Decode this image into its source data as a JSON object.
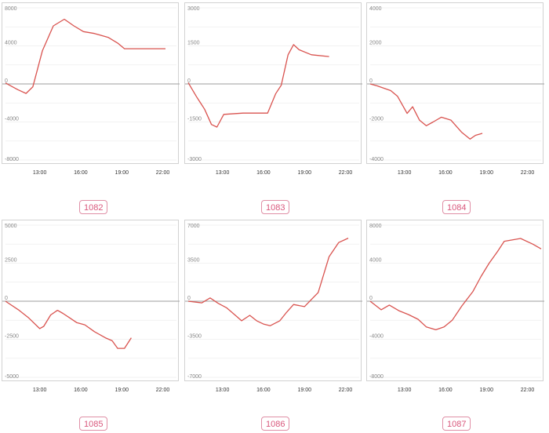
{
  "colors": {
    "line": "#d9534f",
    "grid": "#eeeeee",
    "zero_line": "#b0b0b0",
    "badge": "#d9577c"
  },
  "chart_data": [
    {
      "type": "line",
      "badge": "1082",
      "y_ticks": [
        8000,
        4000,
        0,
        -4000,
        -8000
      ],
      "y_tick_labels": [
        "8000",
        "4000",
        "0",
        "-4000",
        "-8000"
      ],
      "x_ticks": [
        "13:00",
        "16:00",
        "19:00",
        "22:00"
      ],
      "ylim": [
        -8000,
        8000
      ],
      "xlim": [
        10.5,
        23
      ],
      "series": [
        {
          "x": [
            10.5,
            11.4,
            12,
            12.5,
            13.2,
            14,
            14.8,
            15.5,
            16.2,
            17,
            18,
            18.7,
            19.2,
            20,
            21,
            22.2
          ],
          "y": [
            100,
            -600,
            -1000,
            -300,
            3500,
            6100,
            6800,
            6100,
            5500,
            5300,
            4900,
            4300,
            3700,
            3700,
            3700,
            3700
          ]
        }
      ]
    },
    {
      "type": "line",
      "badge": "1083",
      "y_ticks": [
        3000,
        1500,
        0,
        -1500,
        -3000
      ],
      "y_tick_labels": [
        "3000",
        "1500",
        "0",
        "-1500",
        "-3000"
      ],
      "x_ticks": [
        "13:00",
        "16:00",
        "19:00",
        "22:00"
      ],
      "ylim": [
        -3000,
        3000
      ],
      "xlim": [
        10.5,
        23
      ],
      "series": [
        {
          "x": [
            10.5,
            11.1,
            11.7,
            12.2,
            12.6,
            13.1,
            14.5,
            16.3,
            16.9,
            17.3,
            17.8,
            18.2,
            18.6,
            19.5,
            20.8
          ],
          "y": [
            50,
            -500,
            -1000,
            -1600,
            -1700,
            -1200,
            -1150,
            -1150,
            -380,
            -50,
            1150,
            1550,
            1350,
            1150,
            1080
          ]
        }
      ]
    },
    {
      "type": "line",
      "badge": "1084",
      "y_ticks": [
        4000,
        2000,
        0,
        -2000,
        -4000
      ],
      "y_tick_labels": [
        "4000",
        "2000",
        "0",
        "-2000",
        "-4000"
      ],
      "x_ticks": [
        "13:00",
        "16:00",
        "19:00",
        "22:00"
      ],
      "ylim": [
        -4000,
        4000
      ],
      "xlim": [
        10.5,
        23
      ],
      "series": [
        {
          "x": [
            10.5,
            11,
            12,
            12.5,
            13.2,
            13.6,
            14.1,
            14.6,
            15.1,
            15.7,
            16.4,
            17.2,
            17.8,
            18.2,
            18.7
          ],
          "y": [
            0,
            -100,
            -350,
            -650,
            -1550,
            -1200,
            -1900,
            -2200,
            -2000,
            -1750,
            -1900,
            -2550,
            -2900,
            -2700,
            -2600
          ]
        }
      ]
    },
    {
      "type": "line",
      "badge": "1085",
      "y_ticks": [
        5000,
        2500,
        0,
        -2500,
        -5000
      ],
      "y_tick_labels": [
        "5000",
        "2500",
        "0",
        "-2500",
        "-5000"
      ],
      "x_ticks": [
        "13:00",
        "16:00",
        "19:00",
        "22:00"
      ],
      "ylim": [
        -5000,
        5000
      ],
      "xlim": [
        10.5,
        23
      ],
      "series": [
        {
          "x": [
            10.5,
            11.5,
            12.2,
            13,
            13.3,
            13.8,
            14.3,
            14.7,
            15.2,
            15.7,
            16.3,
            17,
            17.8,
            18.3,
            18.7,
            19.2,
            19.7
          ],
          "y": [
            0,
            -600,
            -1100,
            -1800,
            -1650,
            -900,
            -600,
            -800,
            -1100,
            -1400,
            -1550,
            -2000,
            -2400,
            -2600,
            -3100,
            -3100,
            -2400
          ]
        }
      ]
    },
    {
      "type": "line",
      "badge": "1086",
      "y_ticks": [
        7000,
        3500,
        0,
        -3500,
        -7000
      ],
      "y_tick_labels": [
        "7000",
        "3500",
        "0",
        "-3500",
        "-7000"
      ],
      "x_ticks": [
        "13:00",
        "16:00",
        "19:00",
        "22:00"
      ],
      "ylim": [
        -7000,
        7000
      ],
      "xlim": [
        10.5,
        23
      ],
      "series": [
        {
          "x": [
            10.5,
            11.5,
            12.1,
            12.7,
            13.3,
            14,
            14.4,
            15,
            15.5,
            16,
            16.5,
            17.2,
            17.7,
            18.2,
            19,
            20,
            20.8,
            21.5,
            22.2
          ],
          "y": [
            0,
            -150,
            300,
            -200,
            -600,
            -1350,
            -1800,
            -1300,
            -1800,
            -2100,
            -2250,
            -1800,
            -1000,
            -300,
            -500,
            800,
            4100,
            5400,
            5800
          ]
        }
      ]
    },
    {
      "type": "line",
      "badge": "1087",
      "y_ticks": [
        8000,
        4000,
        0,
        -4000,
        -8000
      ],
      "y_tick_labels": [
        "8000",
        "4000",
        "0",
        "-4000",
        "-8000"
      ],
      "x_ticks": [
        "13:00",
        "16:00",
        "19:00",
        "22:00"
      ],
      "ylim": [
        -8000,
        8000
      ],
      "xlim": [
        10.5,
        23
      ],
      "series": [
        {
          "x": [
            10.5,
            11.3,
            11.9,
            12.6,
            13.3,
            14,
            14.6,
            15.3,
            15.9,
            16.5,
            17.2,
            18,
            18.6,
            19.2,
            19.8,
            20.3,
            21.5,
            22.4,
            23
          ],
          "y": [
            0,
            -900,
            -400,
            -1000,
            -1400,
            -1900,
            -2700,
            -3000,
            -2700,
            -2000,
            -500,
            1000,
            2600,
            4000,
            5200,
            6300,
            6600,
            6000,
            5500
          ]
        }
      ]
    }
  ]
}
